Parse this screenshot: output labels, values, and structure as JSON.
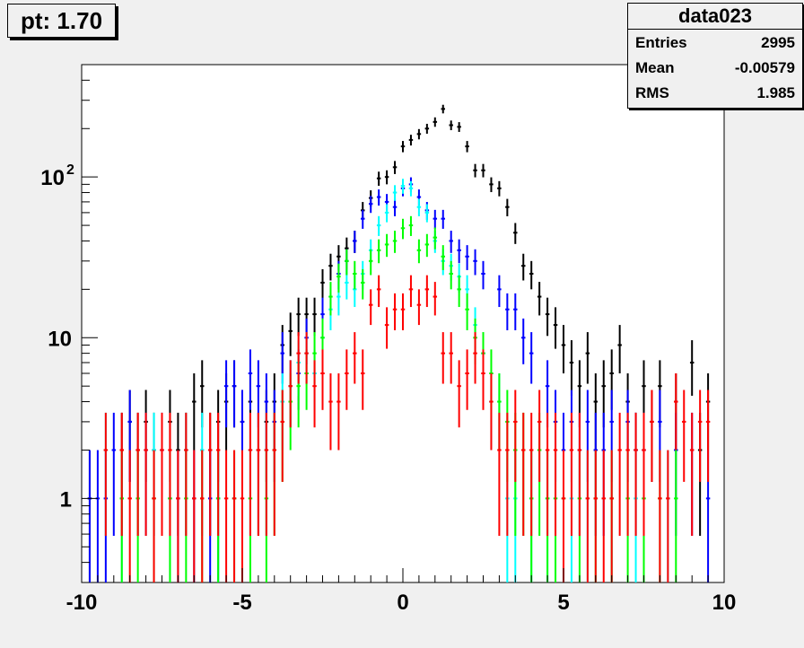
{
  "title": "pt: 1.70",
  "stats": {
    "name": "data023",
    "rows": [
      {
        "label": "Entries",
        "value": "2995"
      },
      {
        "label": "Mean",
        "value": "-0.00579"
      },
      {
        "label": "RMS",
        "value": "1.985"
      }
    ]
  },
  "chart_data": {
    "type": "scatter",
    "title": "pt: 1.70",
    "xlim": [
      -10,
      10
    ],
    "ylim": [
      0.3,
      500
    ],
    "ylog": true,
    "x_ticks": [
      "-10",
      "-5",
      "0",
      "5",
      "10"
    ],
    "y_tick_labels": [
      "1",
      "10",
      "10^2"
    ],
    "bin_width": 0.25,
    "colors": {
      "black": "#000000",
      "blue": "#0000ff",
      "cyan": "#00ffff",
      "green": "#00ff00",
      "red": "#ff0000"
    },
    "series": [
      {
        "color": "#000000",
        "x": [
          -9.75,
          -8.75,
          -8.5,
          -8.25,
          -8.0,
          -7.75,
          -7.25,
          -7.0,
          -6.75,
          -6.5,
          -6.25,
          -6.0,
          -5.75,
          -5.5,
          -5.25,
          -5.0,
          -4.75,
          -4.5,
          -4.25,
          -4.0,
          -3.75,
          -3.5,
          -3.25,
          -3.0,
          -2.75,
          -2.5,
          -2.25,
          -2.0,
          -1.75,
          -1.5,
          -1.25,
          -1.0,
          -0.75,
          -0.5,
          -0.25,
          0.0,
          0.25,
          0.5,
          0.75,
          1.0,
          1.25,
          1.5,
          1.75,
          2.0,
          2.25,
          2.5,
          2.75,
          3.0,
          3.25,
          3.5,
          3.75,
          4.0,
          4.25,
          4.5,
          4.75,
          5.0,
          5.25,
          5.5,
          5.75,
          6.0,
          6.25,
          6.5,
          6.75,
          7.0,
          7.25,
          7.5,
          7.75,
          8.0,
          8.5,
          9.0,
          9.25,
          9.5
        ],
        "y": [
          1,
          2,
          3,
          2,
          3,
          2,
          3,
          2,
          2,
          4,
          5,
          2,
          3,
          4,
          5,
          3,
          4,
          2,
          3,
          4,
          9,
          11,
          14,
          14,
          14,
          22,
          28,
          32,
          36,
          40,
          62,
          74,
          98,
          100,
          115,
          155,
          170,
          185,
          200,
          220,
          265,
          210,
          205,
          155,
          110,
          110,
          90,
          85,
          65,
          45,
          28,
          25,
          18,
          14,
          12,
          9,
          7,
          5,
          8,
          4,
          5,
          6,
          9,
          4,
          2,
          5,
          3,
          5,
          4,
          7,
          2,
          4
        ]
      },
      {
        "color": "#0000ff",
        "x": [
          -9.75,
          -9.5,
          -9.25,
          -9.0,
          -8.5,
          -8.0,
          -7.5,
          -7.0,
          -6.5,
          -6.0,
          -5.75,
          -5.5,
          -5.25,
          -5.0,
          -4.75,
          -4.5,
          -4.25,
          -4.0,
          -3.75,
          -3.5,
          -3.25,
          -3.0,
          -2.5,
          -2.0,
          -1.75,
          -1.5,
          -1.25,
          -1.0,
          -0.75,
          -0.5,
          -0.25,
          0.0,
          0.25,
          0.5,
          0.75,
          1.0,
          1.25,
          1.5,
          1.75,
          2.0,
          2.25,
          2.5,
          3.0,
          3.25,
          3.5,
          3.75,
          4.0,
          4.5,
          4.75,
          5.0,
          5.25,
          5.5,
          5.75,
          6.0,
          6.25,
          6.5,
          7.0,
          7.25,
          7.5,
          8.0,
          8.5,
          9.0,
          9.5
        ],
        "y": [
          1,
          1,
          1,
          2,
          3,
          2,
          2,
          1,
          1,
          1,
          1,
          5,
          5,
          3,
          6,
          5,
          4,
          3,
          8,
          5,
          6,
          10,
          14,
          25,
          30,
          40,
          55,
          68,
          75,
          70,
          65,
          85,
          90,
          75,
          62,
          55,
          55,
          40,
          35,
          32,
          30,
          25,
          20,
          15,
          15,
          10,
          8,
          5,
          3,
          2,
          3,
          2,
          3,
          2,
          2,
          3,
          3,
          2,
          2,
          3,
          2,
          2,
          1
        ]
      },
      {
        "color": "#00ffff",
        "x": [
          -9.25,
          -8.75,
          -7.75,
          -7.25,
          -6.75,
          -6.25,
          -5.75,
          -5.25,
          -4.75,
          -4.25,
          -3.75,
          -3.5,
          -3.25,
          -3.0,
          -2.75,
          -2.5,
          -2.25,
          -2.0,
          -1.75,
          -1.5,
          -1.25,
          -1.0,
          -0.75,
          -0.5,
          -0.25,
          0.0,
          0.25,
          0.5,
          0.75,
          1.0,
          1.25,
          1.5,
          1.75,
          2.0,
          2.25,
          2.5,
          2.75,
          3.0,
          3.25,
          3.5,
          4.0,
          4.5,
          5.25,
          5.75,
          6.5,
          7.25,
          8.25
        ],
        "y": [
          2,
          1,
          2,
          1,
          2,
          2,
          1,
          1,
          2,
          2,
          4,
          5,
          7,
          8,
          6,
          10,
          15,
          18,
          22,
          20,
          25,
          35,
          50,
          60,
          80,
          88,
          85,
          65,
          60,
          40,
          30,
          28,
          24,
          20,
          12,
          8,
          4,
          4,
          1,
          1,
          1,
          1,
          1,
          1,
          1,
          1,
          1
        ]
      },
      {
        "color": "#00ff00",
        "x": [
          -8.75,
          -8.25,
          -7.75,
          -7.25,
          -6.75,
          -6.25,
          -5.75,
          -5.25,
          -4.75,
          -4.25,
          -4.0,
          -3.75,
          -3.5,
          -3.25,
          -3.0,
          -2.75,
          -2.5,
          -2.25,
          -2.0,
          -1.75,
          -1.5,
          -1.25,
          -1.0,
          -0.75,
          -0.5,
          -0.25,
          0.0,
          0.25,
          0.5,
          0.75,
          1.0,
          1.25,
          1.5,
          1.75,
          2.0,
          2.25,
          2.5,
          2.75,
          3.0,
          3.25,
          3.5,
          3.75,
          4.0,
          4.25,
          4.5,
          4.75,
          5.0,
          5.5,
          6.0,
          6.5,
          7.0,
          7.5,
          8.0,
          8.5
        ],
        "y": [
          1,
          1,
          1,
          1,
          1,
          1,
          1,
          1,
          1,
          1,
          2,
          3,
          4,
          5,
          6,
          8,
          10,
          18,
          24,
          30,
          25,
          22,
          30,
          35,
          38,
          40,
          48,
          50,
          35,
          38,
          42,
          32,
          25,
          20,
          15,
          10,
          8,
          6,
          4,
          3,
          2,
          2,
          1,
          2,
          1,
          1,
          1,
          1,
          1,
          1,
          1,
          1,
          1,
          1
        ]
      },
      {
        "color": "#ff0000",
        "x": [
          -9.25,
          -8.75,
          -8.5,
          -8.25,
          -8.0,
          -7.75,
          -7.5,
          -7.25,
          -7.0,
          -6.75,
          -6.5,
          -6.25,
          -6.0,
          -5.75,
          -5.5,
          -5.25,
          -5.0,
          -4.75,
          -4.5,
          -4.25,
          -4.0,
          -3.75,
          -3.5,
          -3.25,
          -3.0,
          -2.75,
          -2.5,
          -2.25,
          -2.0,
          -1.75,
          -1.5,
          -1.25,
          -1.0,
          -0.75,
          -0.5,
          -0.25,
          0.0,
          0.25,
          0.5,
          0.75,
          1.0,
          1.25,
          1.5,
          1.75,
          2.0,
          2.25,
          2.5,
          2.75,
          3.0,
          3.25,
          3.5,
          3.75,
          4.0,
          4.25,
          4.5,
          4.75,
          5.0,
          5.25,
          5.5,
          5.75,
          6.0,
          6.25,
          6.5,
          6.75,
          7.0,
          7.25,
          7.5,
          7.75,
          8.0,
          8.25,
          8.5,
          8.75,
          9.0,
          9.25,
          9.5
        ],
        "y": [
          2,
          2,
          1,
          2,
          2,
          1,
          2,
          2,
          1,
          2,
          1,
          1,
          2,
          2,
          1,
          1,
          1,
          2,
          2,
          2,
          2,
          3,
          5,
          8,
          8,
          5,
          6,
          4,
          4,
          6,
          8,
          6,
          16,
          20,
          12,
          15,
          15,
          20,
          16,
          20,
          18,
          8,
          8,
          5,
          6,
          8,
          6,
          4,
          2,
          2,
          3,
          2,
          2,
          3,
          2,
          2,
          1,
          2,
          2,
          1,
          1,
          1,
          1,
          2,
          2,
          2,
          2,
          3,
          1,
          1,
          4,
          3,
          2,
          3,
          3
        ]
      }
    ]
  }
}
